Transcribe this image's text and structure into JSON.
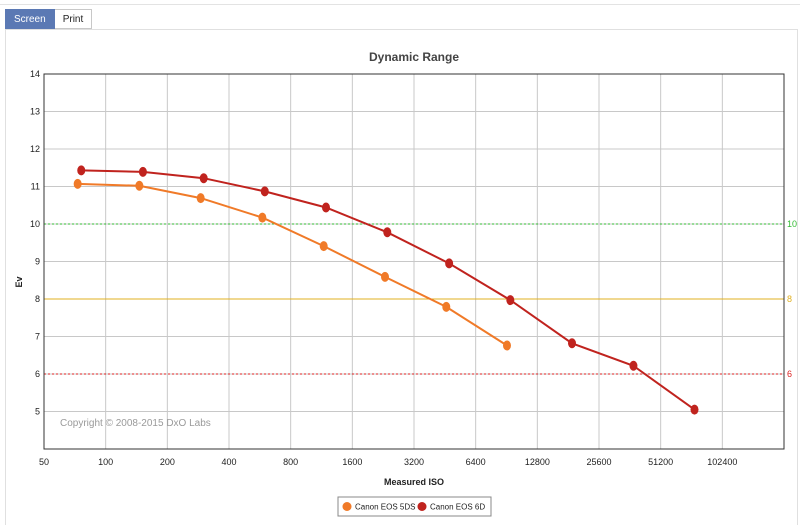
{
  "tabs": [
    {
      "label": "Screen",
      "active": true
    },
    {
      "label": "Print",
      "active": false
    }
  ],
  "copyright": "Copyright © 2008-2015 DxO Labs",
  "chart_data": {
    "type": "line",
    "title": "Dynamic Range",
    "xlabel": "Measured ISO",
    "ylabel": "Ev",
    "x_scale": "log2",
    "xlim": [
      50,
      204800
    ],
    "ylim": [
      4,
      14
    ],
    "x_ticks": [
      "50",
      "100",
      "200",
      "400",
      "800",
      "1600",
      "3200",
      "6400",
      "12800",
      "25600",
      "51200",
      "102400"
    ],
    "y_ticks": [
      "5",
      "6",
      "7",
      "8",
      "9",
      "10",
      "11",
      "12",
      "13",
      "14"
    ],
    "grid": true,
    "legend_position": "bottom-center",
    "reference_lines": [
      {
        "y": 10,
        "label": "10",
        "color": "#33bb33",
        "style": "dotted"
      },
      {
        "y": 8,
        "label": "8",
        "color": "#e0b020",
        "style": "solid"
      },
      {
        "y": 6,
        "label": "6",
        "color": "#dd2222",
        "style": "dotted"
      }
    ],
    "series": [
      {
        "name": "Canon EOS 5DS",
        "color": "#f07a28",
        "x": [
          73,
          146,
          291,
          582,
          1160,
          2310,
          4600,
          9100
        ],
        "y": [
          11.07,
          11.02,
          10.69,
          10.17,
          9.41,
          8.59,
          7.79,
          6.76
        ]
      },
      {
        "name": "Canon EOS 6D",
        "color": "#c0231e",
        "x": [
          76,
          152,
          301,
          598,
          1190,
          2370,
          4750,
          9450,
          18900,
          37700,
          74900
        ],
        "y": [
          11.43,
          11.39,
          11.22,
          10.87,
          10.44,
          9.78,
          8.95,
          7.97,
          6.82,
          6.22,
          5.05
        ]
      }
    ]
  }
}
